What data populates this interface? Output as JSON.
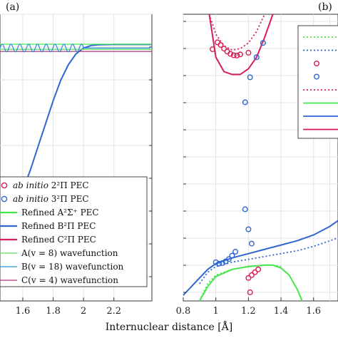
{
  "colors": {
    "red": "#d81e52",
    "blue": "#2f66d0",
    "green": "#45e64a",
    "lightgreen": "#66dd66",
    "teal": "#2a8fd4",
    "purple": "#b0357a"
  },
  "chart_data": [
    {
      "panel": "a",
      "panel_label": "(a)",
      "type": "line",
      "xlim": [
        1.45,
        2.45
      ],
      "xticks": [
        1.6,
        1.8,
        2.0,
        2.2
      ],
      "xtick_labels": [
        "1.6",
        "1.8",
        "2",
        "2.2"
      ],
      "grid": true,
      "legend_placement": "bottom-left",
      "legend": [
        {
          "label_italic": "ab initio",
          "label_rest": " 2²Π PEC",
          "style": "marker",
          "color": "red"
        },
        {
          "label_italic": "ab initio",
          "label_rest": " 3²Π PEC",
          "style": "marker",
          "color": "blue"
        },
        {
          "label_italic": "",
          "label_rest": "Refined A²Σ⁺ PEC",
          "style": "line",
          "color": "green"
        },
        {
          "label_italic": "",
          "label_rest": "Refined B²Π PEC",
          "style": "line",
          "color": "blue"
        },
        {
          "label_italic": "",
          "label_rest": "Refined C²Π PEC",
          "style": "line",
          "color": "red"
        },
        {
          "label_italic": "",
          "label_rest": "A(v = 8) wavefunction",
          "style": "line",
          "color": "lightgreen"
        },
        {
          "label_italic": "",
          "label_rest": "B(v = 18) wavefunction",
          "style": "line",
          "color": "teal"
        },
        {
          "label_italic": "",
          "label_rest": "C(v = 4) wavefunction",
          "style": "line",
          "color": "purple"
        }
      ],
      "series": [
        {
          "color": "blue",
          "x": [
            1.45,
            1.5,
            1.55,
            1.6,
            1.65,
            1.7,
            1.75,
            1.8,
            1.85,
            1.9,
            1.95,
            2.0,
            2.05,
            2.1,
            2.2,
            2.3,
            2.45
          ],
          "y": [
            0.28,
            0.31,
            0.36,
            0.43,
            0.51,
            0.6,
            0.69,
            0.78,
            0.86,
            0.92,
            0.962,
            0.985,
            0.995,
            0.998,
            0.999,
            0.999,
            0.999
          ]
        },
        {
          "color": "green",
          "x": [
            1.45,
            1.7,
            2.0,
            2.2,
            2.45
          ],
          "y": [
            1.0,
            1.0,
            1.0,
            1.0,
            1.0
          ]
        },
        {
          "color": "lightgreen",
          "x": [
            1.45,
            1.6,
            1.8,
            2.0,
            2.45
          ],
          "y": [
            0.98,
            0.98,
            0.98,
            0.98,
            0.98
          ]
        },
        {
          "color": "purple",
          "x": [
            1.45,
            1.6,
            1.8,
            2.0,
            2.45
          ],
          "y": [
            0.972,
            0.972,
            0.972,
            0.972,
            0.972
          ]
        }
      ],
      "wave": {
        "color": "teal",
        "x_start": 1.45,
        "x_end": 2.0,
        "y_center": 0.985,
        "amplitude": 0.015,
        "period": 0.058
      }
    },
    {
      "panel": "b",
      "panel_label": "(b)",
      "type": "line+scatter",
      "xlim": [
        0.8,
        1.75
      ],
      "xticks": [
        0.8,
        1.0,
        1.2,
        1.4,
        1.6
      ],
      "xtick_labels": [
        "0.8",
        "1",
        "1.2",
        "1.4",
        "1.6"
      ],
      "grid": true,
      "xlabel": "Internuclear distance [Å]",
      "ab_initio_2Pi_upper": {
        "x": [
          0.98,
          1.01,
          1.03,
          1.05,
          1.07,
          1.09,
          1.11,
          1.13,
          1.15,
          1.2
        ],
        "y": [
          0.878,
          0.902,
          0.893,
          0.88,
          0.87,
          0.862,
          0.857,
          0.856,
          0.86,
          0.866
        ]
      },
      "ab_initio_3Pi_upper": {
        "x": [
          1.18,
          1.21,
          1.25,
          1.29
        ],
        "y": [
          0.693,
          0.78,
          0.85,
          0.9
        ]
      },
      "ab_initio_3Pi_mid": {
        "x": [
          1.18,
          1.2,
          1.22
        ],
        "y": [
          0.32,
          0.25,
          0.2
        ]
      },
      "ab_initio_3Pi_lower": {
        "x": [
          1.0,
          1.02,
          1.04,
          1.06,
          1.08,
          1.1,
          1.12
        ],
        "y": [
          0.135,
          0.13,
          0.132,
          0.138,
          0.146,
          0.158,
          0.172
        ]
      },
      "ab_initio_2Pi_lower": {
        "x": [
          1.2,
          1.22,
          1.24,
          1.26,
          1.21
        ],
        "y": [
          0.08,
          0.09,
          0.1,
          0.11,
          0.03
        ]
      },
      "C_dotted": {
        "x": [
          0.96,
          1.0,
          1.05,
          1.1,
          1.15,
          1.2,
          1.25,
          1.3
        ],
        "y": [
          1.0,
          0.93,
          0.89,
          0.875,
          0.88,
          0.9,
          0.94,
          1.0
        ]
      },
      "C_solid": {
        "x": [
          0.96,
          1.0,
          1.05,
          1.1,
          1.15,
          1.2,
          1.25,
          1.3,
          1.35
        ],
        "y": [
          1.0,
          0.85,
          0.8,
          0.79,
          0.79,
          0.81,
          0.85,
          0.92,
          1.0
        ]
      },
      "B_solid": {
        "x": [
          0.8,
          0.9,
          0.95,
          1.0,
          1.1,
          1.2,
          1.3,
          1.4,
          1.5,
          1.6,
          1.7,
          1.75
        ],
        "y": [
          0.02,
          0.08,
          0.11,
          0.13,
          0.15,
          0.165,
          0.18,
          0.195,
          0.21,
          0.23,
          0.26,
          0.28
        ]
      },
      "B_dotted": {
        "x": [
          0.9,
          0.95,
          1.0,
          1.1,
          1.2,
          1.3,
          1.4,
          1.5,
          1.6,
          1.7,
          1.75
        ],
        "y": [
          0.06,
          0.1,
          0.12,
          0.135,
          0.145,
          0.155,
          0.165,
          0.175,
          0.19,
          0.21,
          0.22
        ]
      },
      "A_solid": {
        "x": [
          0.9,
          0.95,
          1.0,
          1.1,
          1.2,
          1.3,
          1.35,
          1.4,
          1.45,
          1.5,
          1.53
        ],
        "y": [
          0.0,
          0.05,
          0.085,
          0.11,
          0.12,
          0.125,
          0.125,
          0.115,
          0.09,
          0.04,
          0.0
        ]
      },
      "A_dotted": {
        "x": [
          0.9,
          0.95,
          1.0,
          1.1,
          1.2,
          1.3,
          1.35,
          1.4
        ],
        "y": [
          0.0,
          0.06,
          0.09,
          0.11,
          0.12,
          0.125,
          0.125,
          0.12
        ]
      },
      "inset_legend": {
        "rows": [
          {
            "style": "dotted",
            "color": "green"
          },
          {
            "style": "dotted",
            "color": "blue"
          },
          {
            "style": "marker",
            "color": "red"
          },
          {
            "style": "marker",
            "color": "blue"
          },
          {
            "style": "dotted",
            "color": "red"
          },
          {
            "style": "line",
            "color": "green"
          },
          {
            "style": "line",
            "color": "blue"
          },
          {
            "style": "line",
            "color": "red"
          }
        ]
      }
    }
  ]
}
